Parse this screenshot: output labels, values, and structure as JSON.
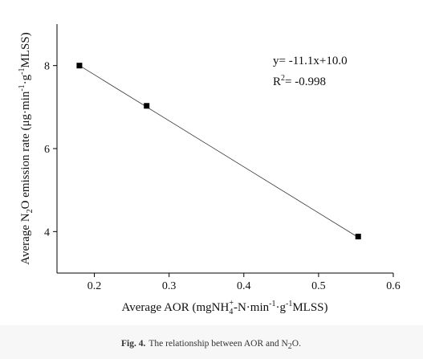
{
  "chart_data": {
    "type": "scatter",
    "x_label": [
      "Average AOR (mgNH",
      "4",
      "+",
      "-N·min",
      "-1",
      "·g",
      "-1",
      "MLSS)"
    ],
    "y_label": [
      "Average N",
      "2",
      "O emission rate (μg·min",
      "-1",
      "·g",
      "-1",
      "MLSS)"
    ],
    "annotation": {
      "equation": "y= -11.1x+10.0",
      "r2": [
        "R",
        "2",
        "= -0.998"
      ]
    },
    "caption": {
      "label": "Fig. 4.",
      "text": [
        "The relationship between AOR and N",
        "2",
        "O."
      ]
    },
    "x": [
      0.18,
      0.27,
      0.553
    ],
    "values": [
      8.0,
      7.03,
      3.88
    ],
    "color": "#000000",
    "fit": {
      "slope": -11.1,
      "intercept": 10.0
    },
    "xlim": [
      0.15,
      0.6
    ],
    "ylim": [
      3,
      9
    ],
    "xticks": [
      0.2,
      0.3,
      0.4,
      0.5,
      0.6
    ],
    "yticks": [
      4,
      6,
      8
    ]
  }
}
